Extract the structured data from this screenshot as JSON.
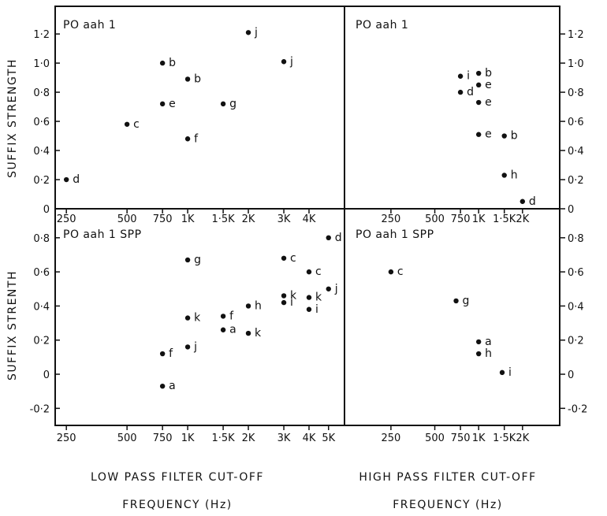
{
  "figure": {
    "ylabel": "SUFFIX STRENGTH",
    "ylabel_bottom": "SUFFIX STRENTH",
    "caption_left_line1": "LOW PASS FILTER CUT-OFF",
    "caption_left_line2": "FREQUENCY (Hz)",
    "caption_right_line1": "HIGH PASS FILTER CUT-OFF",
    "caption_right_line2": "FREQUENCY (Hz)"
  },
  "chart_data": [
    {
      "type": "scatter",
      "id": "top-left",
      "title": "PO aah 1",
      "x_scale": "log",
      "x_ticks": [
        250,
        500,
        750,
        1000,
        1500,
        2000,
        3000,
        4000
      ],
      "x_tick_labels": [
        "250",
        "500",
        "750",
        "1K",
        "1·5K",
        "2K",
        "3K",
        "4K"
      ],
      "xlim": [
        220,
        6000
      ],
      "y_ticks": [
        0,
        0.2,
        0.4,
        0.6,
        0.8,
        1.0,
        1.2
      ],
      "y_tick_labels": [
        "0",
        "0·2",
        "0·4",
        "0·6",
        "0·8",
        "1·0",
        "1·2"
      ],
      "ylim": [
        0,
        1.39
      ],
      "points": [
        {
          "x": 250,
          "y": 0.2,
          "label": "d"
        },
        {
          "x": 500,
          "y": 0.58,
          "label": "c"
        },
        {
          "x": 750,
          "y": 1.0,
          "label": "b"
        },
        {
          "x": 750,
          "y": 0.72,
          "label": "e"
        },
        {
          "x": 1000,
          "y": 0.89,
          "label": "b"
        },
        {
          "x": 1000,
          "y": 0.48,
          "label": "f"
        },
        {
          "x": 1500,
          "y": 0.72,
          "label": "g"
        },
        {
          "x": 2000,
          "y": 1.21,
          "label": "j"
        },
        {
          "x": 3000,
          "y": 1.01,
          "label": "j"
        }
      ]
    },
    {
      "type": "scatter",
      "id": "top-right",
      "title": "PO aah 1",
      "x_scale": "log",
      "x_ticks": [
        250,
        500,
        750,
        1000,
        1500,
        2000
      ],
      "x_tick_labels": [
        "250",
        "500",
        "750",
        "1K",
        "1·5K",
        "2K"
      ],
      "xlim": [
        120,
        3600
      ],
      "y_ticks": [
        0,
        0.2,
        0.4,
        0.6,
        0.8,
        1.0,
        1.2
      ],
      "y_tick_labels": [
        "0",
        "0·2",
        "0·4",
        "0·6",
        "0·8",
        "1·0",
        "1·2"
      ],
      "ylim": [
        0,
        1.39
      ],
      "points": [
        {
          "x": 750,
          "y": 0.91,
          "label": "i"
        },
        {
          "x": 750,
          "y": 0.8,
          "label": "d"
        },
        {
          "x": 1000,
          "y": 0.93,
          "label": "b"
        },
        {
          "x": 1000,
          "y": 0.85,
          "label": "e"
        },
        {
          "x": 1000,
          "y": 0.73,
          "label": "e"
        },
        {
          "x": 1000,
          "y": 0.51,
          "label": "e"
        },
        {
          "x": 1500,
          "y": 0.5,
          "label": "b"
        },
        {
          "x": 1500,
          "y": 0.23,
          "label": "h"
        },
        {
          "x": 2000,
          "y": 0.05,
          "label": "d"
        }
      ]
    },
    {
      "type": "scatter",
      "id": "bottom-left",
      "title": "PO aah 1 SPP",
      "x_scale": "log",
      "x_ticks": [
        250,
        500,
        750,
        1000,
        1500,
        2000,
        3000,
        4000,
        5000
      ],
      "x_tick_labels": [
        "250",
        "500",
        "750",
        "1K",
        "1·5K",
        "2K",
        "3K",
        "4K",
        "5K"
      ],
      "xlim": [
        220,
        6000
      ],
      "y_ticks": [
        -0.2,
        0,
        0.2,
        0.4,
        0.6,
        0.8
      ],
      "y_tick_labels": [
        "-0·2",
        "0",
        "0·2",
        "0·4",
        "0·6",
        "0·8"
      ],
      "ylim": [
        -0.3,
        0.97
      ],
      "points": [
        {
          "x": 750,
          "y": 0.12,
          "label": "f"
        },
        {
          "x": 750,
          "y": -0.07,
          "label": "a"
        },
        {
          "x": 1000,
          "y": 0.67,
          "label": "g"
        },
        {
          "x": 1000,
          "y": 0.33,
          "label": "k"
        },
        {
          "x": 1000,
          "y": 0.16,
          "label": "j"
        },
        {
          "x": 1500,
          "y": 0.34,
          "label": "f"
        },
        {
          "x": 1500,
          "y": 0.26,
          "label": "a"
        },
        {
          "x": 2000,
          "y": 0.4,
          "label": "h"
        },
        {
          "x": 2000,
          "y": 0.24,
          "label": "k"
        },
        {
          "x": 3000,
          "y": 0.68,
          "label": "c"
        },
        {
          "x": 3000,
          "y": 0.46,
          "label": "k"
        },
        {
          "x": 3000,
          "y": 0.42,
          "label": "i"
        },
        {
          "x": 4000,
          "y": 0.6,
          "label": "c"
        },
        {
          "x": 4000,
          "y": 0.45,
          "label": "k"
        },
        {
          "x": 4000,
          "y": 0.38,
          "label": "i"
        },
        {
          "x": 5000,
          "y": 0.8,
          "label": "d"
        },
        {
          "x": 5000,
          "y": 0.5,
          "label": "j"
        }
      ]
    },
    {
      "type": "scatter",
      "id": "bottom-right",
      "title": "PO aah 1 SPP",
      "x_scale": "log",
      "x_ticks": [
        250,
        500,
        750,
        1000,
        1500,
        2000
      ],
      "x_tick_labels": [
        "250",
        "500",
        "750",
        "1K",
        "1·5K",
        "2K"
      ],
      "xlim": [
        120,
        3600
      ],
      "y_ticks": [
        -0.2,
        0,
        0.2,
        0.4,
        0.6,
        0.8
      ],
      "y_tick_labels": [
        "-0·2",
        "0",
        "0·2",
        "0·4",
        "0·6",
        "0·8"
      ],
      "ylim": [
        -0.3,
        0.97
      ],
      "points": [
        {
          "x": 250,
          "y": 0.6,
          "label": "c"
        },
        {
          "x": 700,
          "y": 0.43,
          "label": "g"
        },
        {
          "x": 1000,
          "y": 0.19,
          "label": "a"
        },
        {
          "x": 1000,
          "y": 0.12,
          "label": "h"
        },
        {
          "x": 1450,
          "y": 0.01,
          "label": "i"
        }
      ]
    }
  ]
}
